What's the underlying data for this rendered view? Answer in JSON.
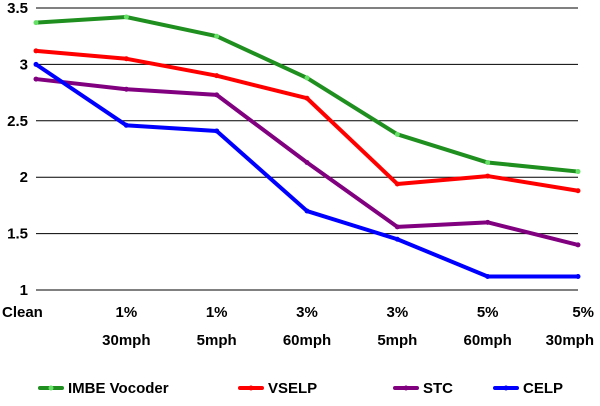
{
  "chart_data": {
    "type": "line",
    "title": "",
    "xlabel": "",
    "ylabel": "",
    "ylim": [
      1,
      3.5
    ],
    "yticks": [
      "1",
      "1.5",
      "2",
      "2.5",
      "3",
      "3.5"
    ],
    "yticks_values": [
      1,
      1.5,
      2,
      2.5,
      3,
      3.5
    ],
    "grid": true,
    "legend_position": "bottom",
    "categories": [
      {
        "line1": "Clean",
        "line2": ""
      },
      {
        "line1": "1%",
        "line2": "30mph"
      },
      {
        "line1": "1%",
        "line2": "5mph"
      },
      {
        "line1": "3%",
        "line2": "60mph"
      },
      {
        "line1": "3%",
        "line2": "5mph"
      },
      {
        "line1": "5%",
        "line2": "60mph"
      },
      {
        "line1": "5%",
        "line2": "30mph"
      }
    ],
    "series": [
      {
        "name": "IMBE Vocoder",
        "color": "#1f8f1f",
        "marker_color": "#66e066",
        "values": [
          3.37,
          3.42,
          3.25,
          2.88,
          2.38,
          2.13,
          2.05
        ]
      },
      {
        "name": "VSELP",
        "color": "#ff0000",
        "marker_color": "#ff0000",
        "values": [
          3.12,
          3.05,
          2.9,
          2.7,
          1.94,
          2.01,
          1.88
        ]
      },
      {
        "name": "STC",
        "color": "#800080",
        "marker_color": "#800080",
        "values": [
          2.87,
          2.78,
          2.73,
          2.13,
          1.56,
          1.6,
          1.4
        ]
      },
      {
        "name": "CELP",
        "color": "#0000ff",
        "marker_color": "#0000ff",
        "values": [
          3.0,
          2.46,
          2.41,
          1.7,
          1.45,
          1.12,
          1.12
        ]
      }
    ]
  }
}
